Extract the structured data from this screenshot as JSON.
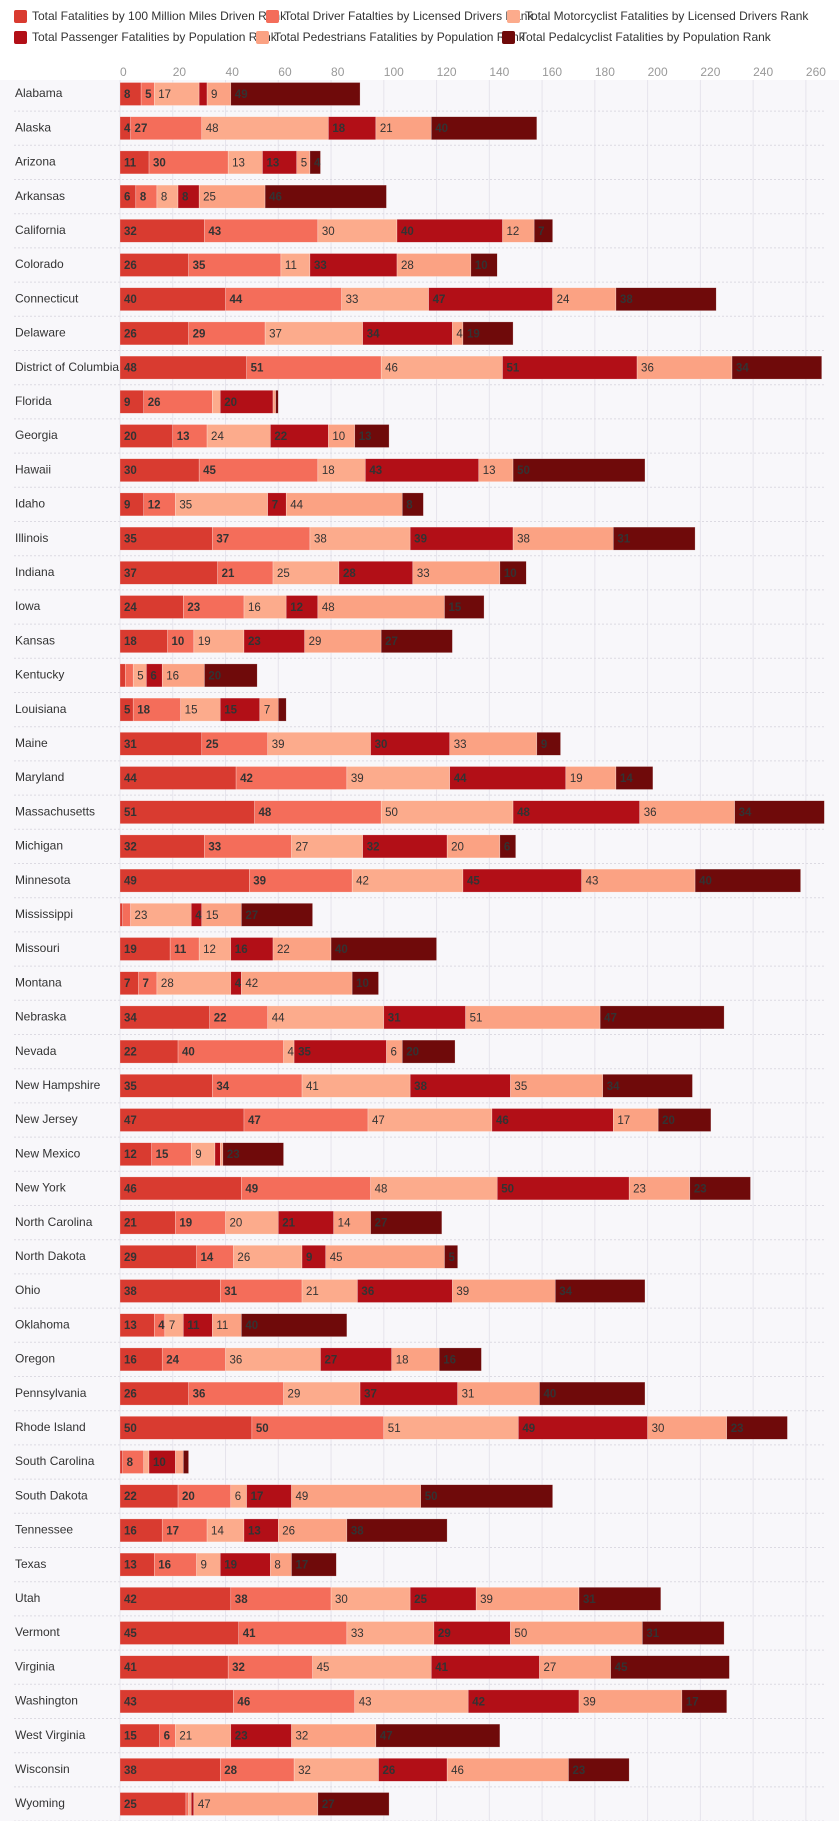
{
  "chart_data": {
    "type": "stacked-bar-horizontal",
    "categories": [
      "Alabama",
      "Alaska",
      "Arizona",
      "Arkansas",
      "California",
      "Colorado",
      "Connecticut",
      "Delaware",
      "District of Columbia",
      "Florida",
      "Georgia",
      "Hawaii",
      "Idaho",
      "Illinois",
      "Indiana",
      "Iowa",
      "Kansas",
      "Kentucky",
      "Louisiana",
      "Maine",
      "Maryland",
      "Massachusetts",
      "Michigan",
      "Minnesota",
      "Mississippi",
      "Missouri",
      "Montana",
      "Nebraska",
      "Nevada",
      "New Hampshire",
      "New Jersey",
      "New Mexico",
      "New York",
      "North Carolina",
      "North Dakota",
      "Ohio",
      "Oklahoma",
      "Oregon",
      "Pennsylvania",
      "Rhode Island",
      "South Carolina",
      "South Dakota",
      "Tennessee",
      "Texas",
      "Utah",
      "Vermont",
      "Virginia",
      "Washington",
      "West Virginia",
      "Wisconsin",
      "Wyoming"
    ],
    "series": [
      {
        "name": "Total Fatalities by 100 Million Miles Driven Rank",
        "color": "#d93b30",
        "values": [
          8,
          4,
          11,
          6,
          32,
          26,
          40,
          26,
          48,
          9,
          20,
          30,
          9,
          35,
          37,
          24,
          18,
          2,
          5,
          31,
          44,
          51,
          32,
          49,
          1,
          19,
          7,
          34,
          22,
          35,
          47,
          12,
          46,
          21,
          29,
          38,
          13,
          16,
          26,
          50,
          1,
          22,
          16,
          13,
          42,
          45,
          41,
          43,
          15,
          38,
          25
        ]
      },
      {
        "name": "Total Driver Fatalties by Licensed Drivers Rank",
        "color": "#f46d5a",
        "values": [
          5,
          27,
          30,
          8,
          43,
          35,
          44,
          29,
          51,
          26,
          13,
          45,
          12,
          37,
          21,
          23,
          10,
          3,
          18,
          25,
          42,
          48,
          33,
          39,
          3,
          11,
          7,
          22,
          40,
          34,
          47,
          15,
          49,
          19,
          14,
          31,
          4,
          24,
          36,
          50,
          8,
          20,
          17,
          16,
          38,
          41,
          32,
          46,
          6,
          28,
          1
        ]
      },
      {
        "name": "Total Motorcyclist Fatalities by Licensed Drivers Rank",
        "color": "#fcab8c",
        "values": [
          17,
          48,
          13,
          8,
          30,
          11,
          33,
          37,
          46,
          3,
          24,
          18,
          35,
          38,
          25,
          16,
          19,
          5,
          15,
          39,
          39,
          50,
          27,
          42,
          23,
          12,
          28,
          44,
          4,
          41,
          47,
          9,
          48,
          20,
          26,
          21,
          7,
          36,
          29,
          51,
          2,
          6,
          14,
          9,
          30,
          33,
          45,
          43,
          21,
          32,
          1
        ]
      },
      {
        "name": "Total Passenger Fatalities by Population Rank",
        "color": "#b20f17",
        "values": [
          3,
          18,
          13,
          8,
          40,
          33,
          47,
          34,
          51,
          20,
          22,
          43,
          7,
          39,
          28,
          12,
          23,
          6,
          15,
          30,
          44,
          48,
          32,
          45,
          4,
          16,
          4,
          31,
          35,
          38,
          46,
          2,
          50,
          21,
          9,
          36,
          11,
          27,
          37,
          49,
          10,
          17,
          13,
          19,
          25,
          29,
          41,
          42,
          23,
          26,
          1
        ]
      },
      {
        "name": "Total Pedestrians Fatalities by Population Rank",
        "color": "#fba283",
        "values": [
          9,
          21,
          5,
          25,
          12,
          28,
          24,
          4,
          36,
          1,
          10,
          13,
          44,
          38,
          33,
          48,
          29,
          16,
          7,
          33,
          19,
          36,
          20,
          43,
          15,
          22,
          42,
          51,
          6,
          35,
          17,
          1,
          23,
          14,
          45,
          39,
          11,
          18,
          31,
          30,
          3,
          49,
          26,
          8,
          39,
          50,
          27,
          39,
          32,
          46,
          47
        ]
      },
      {
        "name": "Total Pedalcyclist Fatalities by Population Rank",
        "color": "#6f0a0a",
        "values": [
          49,
          40,
          4,
          46,
          7,
          10,
          38,
          19,
          34,
          1,
          13,
          50,
          8,
          31,
          10,
          15,
          27,
          20,
          3,
          9,
          14,
          34,
          6,
          40,
          27,
          40,
          10,
          47,
          20,
          34,
          20,
          23,
          23,
          27,
          5,
          34,
          40,
          16,
          40,
          23,
          2,
          50,
          38,
          17,
          31,
          31,
          45,
          17,
          47,
          23,
          27
        ]
      }
    ],
    "xlim": [
      0,
      268
    ],
    "xticks": [
      0,
      20,
      40,
      60,
      80,
      100,
      120,
      140,
      160,
      180,
      200,
      220,
      240,
      260
    ],
    "grid": true
  }
}
